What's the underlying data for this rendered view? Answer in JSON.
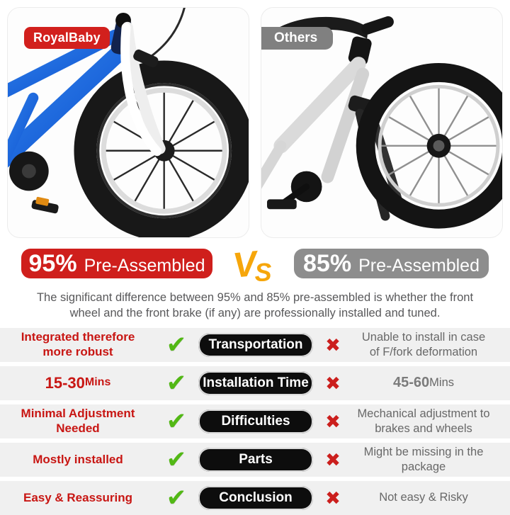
{
  "palette": {
    "brand_red": "#d2201d",
    "others_gray": "#808080",
    "badge_red": "#cf1f1c",
    "badge_gray": "#8d8d8d",
    "vs_yellow": "#f6a60b",
    "check_green": "#52b815",
    "cross_red": "#cb1f1d",
    "pill_black": "#0d0d0d",
    "left_red": "#c81613",
    "right_gray": "#686868",
    "row_band": "#f0f0f0"
  },
  "photos": {
    "brand_badge": "RoyalBaby",
    "others_badge": "Others"
  },
  "comparison": {
    "left_percent": "95%",
    "left_label": "Pre-Assembled",
    "vs_v": "V",
    "vs_s": "S",
    "right_percent": "85%",
    "right_label": "Pre-Assembled",
    "description": "The significant difference between 95% and 85% pre-assembled is whether the front wheel and the front brake (if any) are professionally installed and tuned."
  },
  "icons": {
    "check": "✔",
    "cross": "✖"
  },
  "table": {
    "rows": [
      {
        "left": [
          {
            "text": "Integrated therefore more robust",
            "style": "bold"
          }
        ],
        "topic": "Transportation",
        "right": [
          {
            "text": "Unable to install in case of F/fork deformation",
            "style": "normal"
          }
        ]
      },
      {
        "left": [
          {
            "text": "15-30",
            "style": "big"
          },
          {
            "text": " Mins",
            "style": "bold-small"
          }
        ],
        "topic": "Installation Time",
        "right": [
          {
            "text": "45-60",
            "style": "big"
          },
          {
            "text": " Mins",
            "style": "normal"
          }
        ]
      },
      {
        "left": [
          {
            "text": "Minimal Adjustment Needed",
            "style": "bold"
          }
        ],
        "topic": "Difficulties",
        "right": [
          {
            "text": "Mechanical adjustment to brakes and wheels",
            "style": "normal"
          }
        ]
      },
      {
        "left": [
          {
            "text": "Mostly installed",
            "style": "bold"
          }
        ],
        "topic": "Parts",
        "right": [
          {
            "text": "Might be missing in the package",
            "style": "normal"
          }
        ]
      },
      {
        "left": [
          {
            "text": "Easy & Reassuring",
            "style": "bold"
          }
        ],
        "topic": "Conclusion",
        "right": [
          {
            "text": "Not easy & Risky",
            "style": "normal"
          }
        ]
      }
    ]
  }
}
